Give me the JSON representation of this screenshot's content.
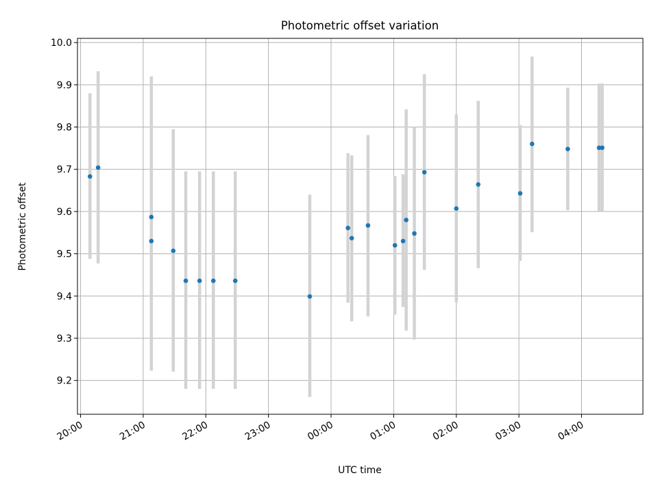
{
  "chart_data": {
    "type": "scatter",
    "title": "Photometric offset variation",
    "xlabel": "UTC time",
    "ylabel": "Photometric offset",
    "x_unit": "hours",
    "xlim": [
      19.95,
      28.98
    ],
    "ylim": [
      9.12,
      10.01
    ],
    "grid": true,
    "x_ticks": [
      {
        "value": 20,
        "label": "20:00"
      },
      {
        "value": 21,
        "label": "21:00"
      },
      {
        "value": 22,
        "label": "22:00"
      },
      {
        "value": 23,
        "label": "23:00"
      },
      {
        "value": 24,
        "label": "00:00"
      },
      {
        "value": 25,
        "label": "01:00"
      },
      {
        "value": 26,
        "label": "02:00"
      },
      {
        "value": 27,
        "label": "03:00"
      },
      {
        "value": 28,
        "label": "04:00"
      }
    ],
    "y_ticks": [
      {
        "value": 9.2,
        "label": "9.2"
      },
      {
        "value": 9.3,
        "label": "9.3"
      },
      {
        "value": 9.4,
        "label": "9.4"
      },
      {
        "value": 9.5,
        "label": "9.5"
      },
      {
        "value": 9.6,
        "label": "9.6"
      },
      {
        "value": 9.7,
        "label": "9.7"
      },
      {
        "value": 9.8,
        "label": "9.8"
      },
      {
        "value": 9.9,
        "label": "9.9"
      },
      {
        "value": 10.0,
        "label": "10.0"
      }
    ],
    "points": [
      {
        "x": 20.15,
        "y": 9.683,
        "ylow": 9.488,
        "yhigh": 9.88
      },
      {
        "x": 20.28,
        "y": 9.704,
        "ylow": 9.477,
        "yhigh": 9.932
      },
      {
        "x": 21.13,
        "y": 9.53,
        "ylow": 9.255,
        "yhigh": 9.92
      },
      {
        "x": 21.13,
        "y": 9.587,
        "ylow": 9.223,
        "yhigh": 9.9
      },
      {
        "x": 21.48,
        "y": 9.507,
        "ylow": 9.221,
        "yhigh": 9.795
      },
      {
        "x": 21.68,
        "y": 9.436,
        "ylow": 9.18,
        "yhigh": 9.695
      },
      {
        "x": 21.9,
        "y": 9.436,
        "ylow": 9.18,
        "yhigh": 9.695
      },
      {
        "x": 22.12,
        "y": 9.436,
        "ylow": 9.18,
        "yhigh": 9.695
      },
      {
        "x": 22.47,
        "y": 9.436,
        "ylow": 9.18,
        "yhigh": 9.695
      },
      {
        "x": 23.66,
        "y": 9.399,
        "ylow": 9.161,
        "yhigh": 9.64
      },
      {
        "x": 24.27,
        "y": 9.561,
        "ylow": 9.384,
        "yhigh": 9.738
      },
      {
        "x": 24.33,
        "y": 9.537,
        "ylow": 9.34,
        "yhigh": 9.733
      },
      {
        "x": 24.59,
        "y": 9.567,
        "ylow": 9.352,
        "yhigh": 9.781
      },
      {
        "x": 25.02,
        "y": 9.52,
        "ylow": 9.356,
        "yhigh": 9.684
      },
      {
        "x": 25.15,
        "y": 9.53,
        "ylow": 9.374,
        "yhigh": 9.688
      },
      {
        "x": 25.2,
        "y": 9.58,
        "ylow": 9.318,
        "yhigh": 9.842
      },
      {
        "x": 25.33,
        "y": 9.548,
        "ylow": 9.297,
        "yhigh": 9.8
      },
      {
        "x": 25.49,
        "y": 9.693,
        "ylow": 9.462,
        "yhigh": 9.925
      },
      {
        "x": 26.0,
        "y": 9.607,
        "ylow": 9.385,
        "yhigh": 9.83
      },
      {
        "x": 26.35,
        "y": 9.664,
        "ylow": 9.466,
        "yhigh": 9.862
      },
      {
        "x": 27.02,
        "y": 9.643,
        "ylow": 9.483,
        "yhigh": 9.805
      },
      {
        "x": 27.21,
        "y": 9.76,
        "ylow": 9.551,
        "yhigh": 9.967
      },
      {
        "x": 27.78,
        "y": 9.748,
        "ylow": 9.603,
        "yhigh": 9.893
      },
      {
        "x": 28.28,
        "y": 9.751,
        "ylow": 9.601,
        "yhigh": 9.903
      },
      {
        "x": 28.33,
        "y": 9.751,
        "ylow": 9.601,
        "yhigh": 9.903
      }
    ],
    "colors": {
      "point": "#1f77b4",
      "errorbar": "#d3d3d3",
      "grid": "#b0b0b0"
    }
  }
}
